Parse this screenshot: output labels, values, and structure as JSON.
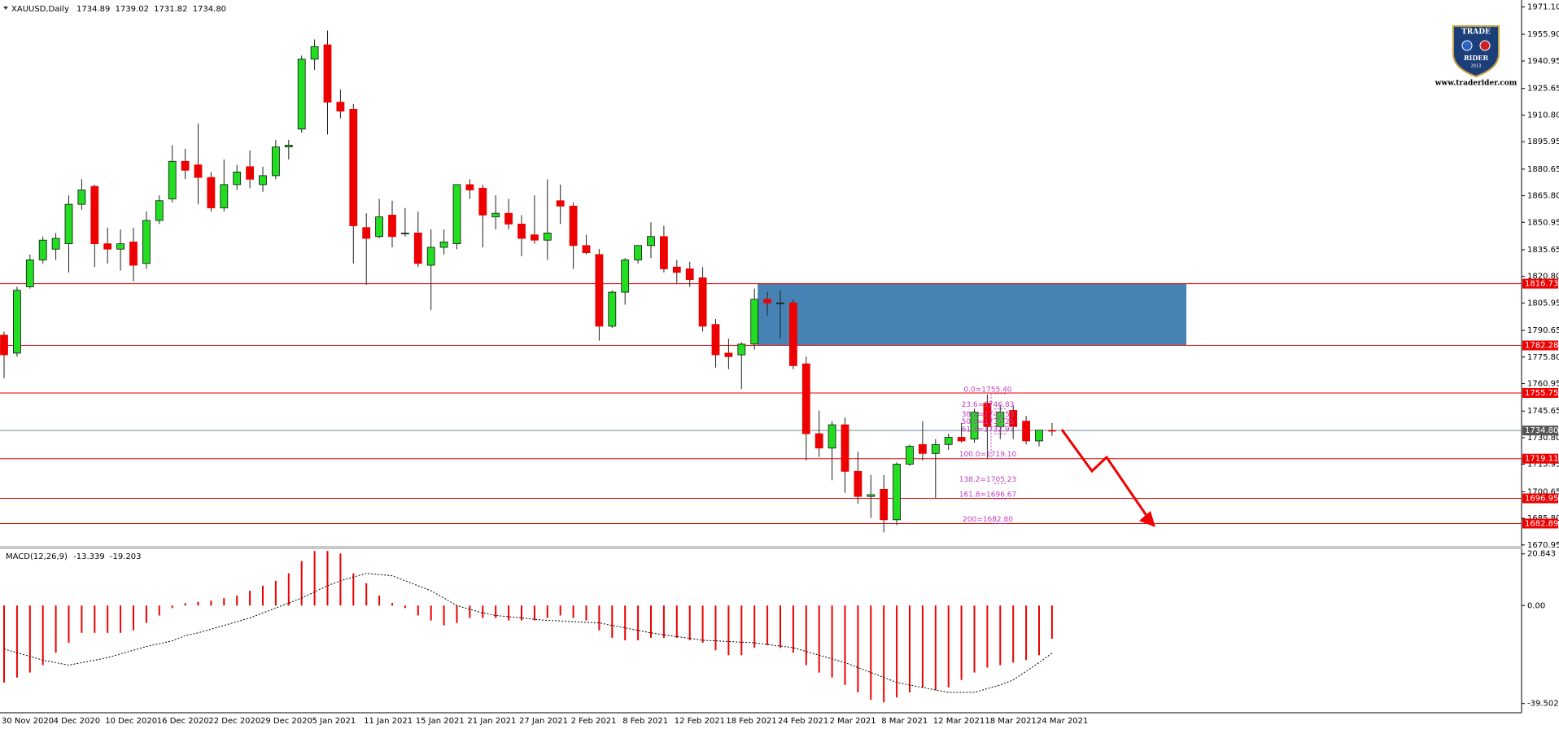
{
  "chart_data": [
    {
      "type": "candlestick",
      "symbol": "XAUUSD,Daily",
      "ohlc": [
        "1734.89",
        "1739.02",
        "1731.82",
        "1734.80"
      ],
      "categories": [
        "30 Nov 2020",
        null,
        null,
        null,
        "4 Dec 2020",
        null,
        null,
        null,
        "10 Dec 2020",
        null,
        null,
        null,
        "16 Dec 2020",
        null,
        null,
        null,
        "22 Dec 2020",
        null,
        null,
        null,
        "29 Dec 2020",
        null,
        null,
        null,
        "5 Jan 2021",
        null,
        null,
        null,
        "11 Jan 2021",
        null,
        null,
        null,
        "15 Jan 2021",
        null,
        null,
        null,
        "21 Jan 2021",
        null,
        null,
        null,
        "27 Jan 2021",
        null,
        null,
        null,
        "2 Feb 2021",
        null,
        null,
        null,
        "8 Feb 2021",
        null,
        null,
        null,
        "12 Feb 2021",
        null,
        null,
        null,
        "18 Feb 2021",
        null,
        null,
        null,
        "24 Feb 2021",
        null,
        null,
        null,
        "2 Mar 2021",
        null,
        null,
        null,
        "8 Mar 2021",
        null,
        null,
        null,
        "12 Mar 2021",
        null,
        null,
        null,
        "18 Mar 2021",
        null,
        null,
        null,
        "24 Mar 2021",
        null
      ],
      "open": [
        1788,
        1778,
        1815,
        1830,
        1836,
        1839,
        1861,
        1871,
        1839,
        1836,
        1840,
        1828,
        1852,
        1864,
        1885,
        1883,
        1876,
        1859,
        1872,
        1882,
        1872,
        1877,
        1893,
        1903,
        1942,
        1950,
        1918,
        1914,
        1848,
        1843,
        1855,
        1845,
        1845,
        1827,
        1837,
        1839,
        1872,
        1870,
        1854,
        1856,
        1850,
        1844,
        1841,
        1863,
        1860,
        1838,
        1833,
        1793,
        1812,
        1830,
        1838,
        1843,
        1826,
        1825,
        1820,
        1794,
        1778,
        1777,
        1783,
        1808,
        1806,
        1806,
        1772,
        1733,
        1725,
        1738,
        1712,
        1698,
        1702,
        1685,
        1716,
        1727,
        1722,
        1727,
        1731,
        1730,
        1750,
        1737,
        1746,
        1740,
        1729,
        1734.89
      ],
      "high": [
        1790,
        1815,
        1833,
        1843,
        1845,
        1866,
        1875,
        1872,
        1848,
        1847,
        1848,
        1857,
        1866,
        1894,
        1892,
        1906,
        1879,
        1886,
        1883,
        1891,
        1882,
        1897,
        1897,
        1944,
        1953,
        1958,
        1925,
        1917,
        1856,
        1864,
        1863,
        1859,
        1857,
        1847,
        1847,
        1872,
        1875,
        1872,
        1866,
        1864,
        1855,
        1866,
        1875,
        1872,
        1862,
        1844,
        1836,
        1813,
        1831,
        1838,
        1851,
        1849,
        1830,
        1829,
        1826,
        1797,
        1786,
        1784,
        1814,
        1812,
        1813,
        1808,
        1776,
        1746,
        1740,
        1742,
        1723,
        1710,
        1710,
        1717,
        1727,
        1740,
        1730,
        1733,
        1739,
        1747,
        1755,
        1749,
        1749,
        1743,
        1735,
        1739.02
      ],
      "low": [
        1764,
        1776,
        1814,
        1828,
        1830,
        1823,
        1858,
        1826,
        1828,
        1824,
        1818,
        1825,
        1850,
        1862,
        1875,
        1861,
        1857,
        1857,
        1869,
        1870,
        1868,
        1875,
        1886,
        1901,
        1936,
        1900,
        1909,
        1828,
        1816,
        1842,
        1837,
        1843,
        1826,
        1802,
        1833,
        1836,
        1864,
        1837,
        1847,
        1847,
        1832,
        1839,
        1830,
        1850,
        1825,
        1833,
        1785,
        1792,
        1805,
        1828,
        1831,
        1823,
        1817,
        1815,
        1790,
        1770,
        1769,
        1758,
        1780,
        1799,
        1786,
        1769,
        1718,
        1720,
        1707,
        1700,
        1694,
        1686,
        1678,
        1682,
        1715,
        1718,
        1697,
        1724,
        1728,
        1728,
        1719,
        1730,
        1730,
        1727,
        1726,
        1731.82
      ],
      "close": [
        1777,
        1813,
        1830,
        1841,
        1842,
        1861,
        1869,
        1839,
        1836,
        1839,
        1827,
        1852,
        1863,
        1885,
        1880,
        1876,
        1859,
        1872,
        1879,
        1875,
        1877,
        1893,
        1894,
        1942,
        1949,
        1918,
        1913,
        1849,
        1842,
        1854,
        1843,
        1845,
        1828,
        1837,
        1840,
        1872,
        1869,
        1855,
        1856,
        1850,
        1842,
        1841,
        1845,
        1860,
        1838,
        1834,
        1793,
        1812,
        1830,
        1838,
        1843,
        1825,
        1823,
        1819,
        1793,
        1777,
        1776,
        1783,
        1808,
        1806,
        1806,
        1771,
        1733,
        1725,
        1738,
        1712,
        1698,
        1699,
        1685,
        1716,
        1726,
        1722,
        1727,
        1731,
        1729,
        1745,
        1737,
        1745,
        1737,
        1729,
        1735,
        1734.8
      ],
      "up_color": "#22dd22",
      "down_color": "#ee0000",
      "ylim": [
        1670.4,
        1975
      ],
      "yticks": [
        {
          "value": 1971.1,
          "label": "1971.10"
        },
        {
          "value": 1955.9,
          "label": "1955.90"
        },
        {
          "value": 1940.95,
          "label": "1940.95"
        },
        {
          "value": 1925.65,
          "label": "1925.65"
        },
        {
          "value": 1910.8,
          "label": "1910.80"
        },
        {
          "value": 1895.95,
          "label": "1895.95"
        },
        {
          "value": 1880.65,
          "label": "1880.65"
        },
        {
          "value": 1865.8,
          "label": "1865.80"
        },
        {
          "value": 1850.95,
          "label": "1850.95"
        },
        {
          "value": 1835.65,
          "label": "1835.65"
        },
        {
          "value": 1820.8,
          "label": "1820.80"
        },
        {
          "value": 1805.95,
          "label": "1805.95"
        },
        {
          "value": 1790.65,
          "label": "1790.65"
        },
        {
          "value": 1775.8,
          "label": "1775.80"
        },
        {
          "value": 1760.95,
          "label": "1760.95"
        },
        {
          "value": 1745.65,
          "label": "1745.65"
        },
        {
          "value": 1730.8,
          "label": "1730.80"
        },
        {
          "value": 1715.95,
          "label": "1715.95"
        },
        {
          "value": 1700.65,
          "label": "1700.65"
        },
        {
          "value": 1685.8,
          "label": "1685.80"
        },
        {
          "value": 1670.95,
          "label": "1670.95"
        }
      ],
      "levels": [
        1816.73,
        1782.28,
        1755.75,
        1719.11,
        1696.95,
        1682.89
      ],
      "level_color": "#ee0000",
      "zone_color": "#4682b4",
      "last": {
        "value": 1734.8,
        "label": "1734.80"
      },
      "fib": [
        {
          "value": 1755.4,
          "label": "0.0=1755.40"
        },
        {
          "value": 1746.83,
          "label": "23.6=1746.83"
        },
        {
          "value": 1741.53,
          "label": "38.2=1741.53"
        },
        {
          "value": 1737.25,
          "label": "50.0=1737.25"
        },
        {
          "value": 1732.97,
          "label": "61.8=1732.97"
        },
        {
          "value": 1719.1,
          "label": "100.0=1719.10"
        },
        {
          "value": 1705.23,
          "label": "138.2=1705.23"
        },
        {
          "value": 1696.67,
          "label": "161.8=1696.67"
        },
        {
          "value": 1682.8,
          "label": "200=1682.80"
        }
      ],
      "fib_color": "#c040c0",
      "logo": {
        "top": "TRADE",
        "bottom": "RIDER",
        "year": "2013",
        "url": "www.traderider.com"
      }
    },
    {
      "type": "macd",
      "title": "MACD(12,26,9)",
      "readout": [
        "-13.339",
        "-19.203"
      ],
      "values": [
        -31,
        -29,
        -27,
        -24,
        -19,
        -15,
        -11,
        -11,
        -11,
        -11,
        -10,
        -7,
        -4,
        -1,
        1,
        1.5,
        2,
        3,
        4,
        6,
        8,
        10,
        13,
        18,
        22,
        22,
        21,
        13,
        9,
        4,
        1,
        -1,
        -4,
        -6,
        -8,
        -7,
        -5,
        -5,
        -5,
        -6,
        -6,
        -6,
        -5,
        -4,
        -5,
        -6,
        -10,
        -13,
        -14,
        -14,
        -13,
        -13,
        -13,
        -14,
        -15,
        -18,
        -20,
        -20,
        -17,
        -16,
        -17,
        -19,
        -24,
        -27,
        -29,
        -32,
        -35,
        -38,
        -39,
        -37,
        -35,
        -33,
        -34,
        -33,
        -30,
        -27,
        -25,
        -24,
        -23,
        -22,
        -20,
        -13.339
      ],
      "signal": [
        -17.5,
        -19,
        -20.5,
        -22,
        -23,
        -24,
        -23,
        -22,
        -21,
        -19.5,
        -18,
        -16.5,
        -15.4,
        -14.2,
        -12.1,
        -11,
        -9.5,
        -8,
        -6.5,
        -5,
        -3,
        -1,
        1,
        3,
        5.5,
        8,
        10,
        11.5,
        13,
        12.5,
        12,
        10,
        8,
        6,
        3,
        0,
        -1.5,
        -3,
        -4,
        -4.5,
        -5,
        -5.5,
        -6,
        -6.2,
        -6.5,
        -6.8,
        -7,
        -8,
        -9,
        -10,
        -11,
        -11.8,
        -12.5,
        -13.2,
        -14,
        -14.2,
        -14.5,
        -14.8,
        -15,
        -15.7,
        -16.3,
        -17,
        -18.5,
        -20,
        -21.5,
        -23,
        -25,
        -27,
        -29,
        -31,
        -32,
        -33,
        -34,
        -35,
        -35,
        -35,
        -33.5,
        -32,
        -30,
        -26.5,
        -23,
        -19.203
      ],
      "color": "#ee0000",
      "signal_color": "#000000",
      "ylim": [
        -43.2,
        22.4
      ],
      "yticks": [
        20.843,
        {
          "value": 0,
          "label": "0.00"
        },
        -39.502
      ]
    }
  ]
}
